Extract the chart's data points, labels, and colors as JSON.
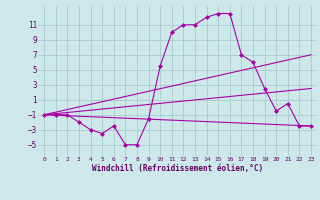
{
  "xlabel": "Windchill (Refroidissement éolien,°C)",
  "bg_color": "#cce8e8",
  "grid_color": "#aacccc",
  "line_color": "#aa00aa",
  "xlim": [
    -0.5,
    23.5
  ],
  "ylim": [
    -6.5,
    13.5
  ],
  "yticks": [
    -5,
    -3,
    -1,
    1,
    3,
    5,
    7,
    9,
    11
  ],
  "xticks": [
    0,
    1,
    2,
    3,
    4,
    5,
    6,
    7,
    8,
    9,
    10,
    11,
    12,
    13,
    14,
    15,
    16,
    17,
    18,
    19,
    20,
    21,
    22,
    23
  ],
  "series": [
    {
      "x": [
        0,
        1,
        2,
        3,
        4,
        5,
        6,
        7,
        8,
        9,
        10,
        11,
        12,
        13,
        14,
        15,
        16,
        17,
        18,
        19,
        20,
        21,
        22,
        23
      ],
      "y": [
        -1,
        -1,
        -1,
        -2,
        -3,
        -3.5,
        -2.5,
        -5,
        -5,
        -1.5,
        5.5,
        10,
        11,
        11,
        12,
        12.5,
        12.5,
        7,
        6,
        2.5,
        -0.5,
        0.5,
        -2.5,
        -2.5
      ],
      "marker": true
    },
    {
      "x": [
        0,
        23
      ],
      "y": [
        -1,
        7
      ],
      "marker": false
    },
    {
      "x": [
        0,
        23
      ],
      "y": [
        -1,
        2.5
      ],
      "marker": false
    },
    {
      "x": [
        0,
        23
      ],
      "y": [
        -1,
        -2.5
      ],
      "marker": false
    }
  ]
}
